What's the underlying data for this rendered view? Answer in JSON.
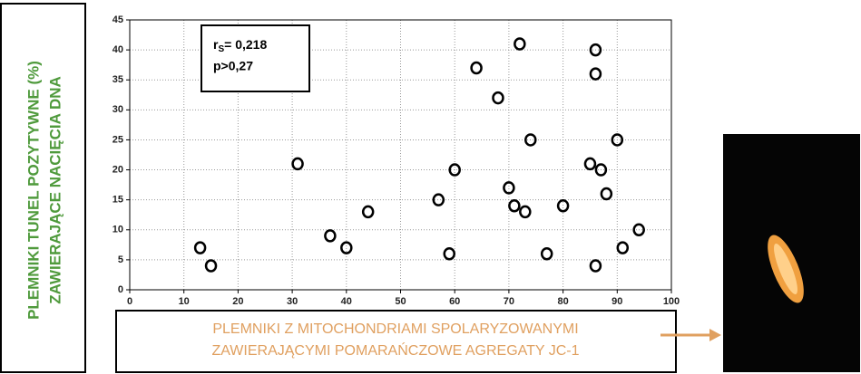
{
  "chart_data": {
    "type": "scatter",
    "x_label": [
      "PLEMNIKI Z MITOCHONDRIAMI SPOLARYZOWANYMI",
      "ZAWIERAJĄCYMI POMARAŃCZOWE AGREGATY JC-1"
    ],
    "y_label": [
      "PLEMNIKI TUNEL POZYTYWNE (%)",
      "ZAWIERAJĄCE NACIĘCIA DNA"
    ],
    "annotation": {
      "symbol": "r",
      "subscript": "S",
      "text": "= 0,218",
      "p": "p>0,27"
    },
    "x": [
      13,
      15,
      31,
      37,
      40,
      44,
      57,
      59,
      60,
      64,
      68,
      70,
      71,
      72,
      73,
      74,
      77,
      80,
      85,
      86,
      86,
      86,
      87,
      88,
      90,
      91,
      94
    ],
    "values": [
      7,
      4,
      21,
      9,
      7,
      13,
      15,
      6,
      20,
      37,
      32,
      17,
      14,
      41,
      13,
      25,
      6,
      14,
      21,
      40,
      36,
      4,
      20,
      16,
      25,
      7,
      10
    ],
    "color": "#000000",
    "xlim": [
      0,
      100
    ],
    "xticks": [
      0,
      10,
      20,
      30,
      40,
      50,
      60,
      70,
      80,
      90,
      100
    ],
    "ylim": [
      0,
      45
    ],
    "yticks": [
      0,
      5,
      10,
      15,
      20,
      25,
      30,
      35,
      40,
      45
    ],
    "grid": true
  }
}
